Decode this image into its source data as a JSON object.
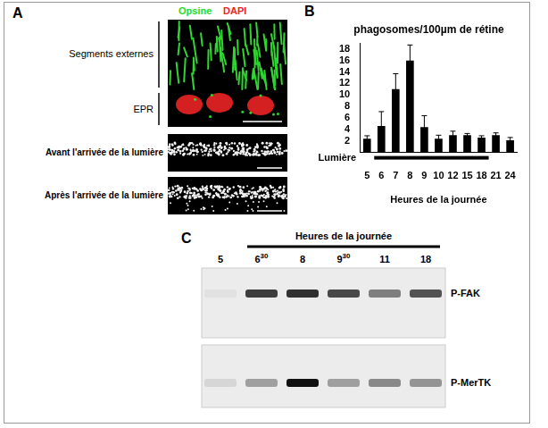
{
  "panel_a": {
    "letter": "A",
    "legend": [
      {
        "text": "Opsine",
        "color": "#22dd22"
      },
      {
        "text": "DAPI",
        "color": "#ee2222"
      }
    ],
    "layers": [
      "Segments externes",
      "EPR"
    ],
    "rows": [
      "Avant l'arrivée de la lumière",
      "Après l'arrivée de la lumière"
    ]
  },
  "chart_data": {
    "letter": "B",
    "type": "bar",
    "title": "phagosomes/100µm de rétine",
    "x_label": "Heures de la journée",
    "categories": [
      "5",
      "6",
      "7",
      "8",
      "9",
      "10",
      "12",
      "15",
      "18",
      "21",
      "24"
    ],
    "values": [
      2.4,
      4.6,
      11,
      16,
      4.4,
      2.4,
      3.0,
      3.0,
      2.6,
      3.0,
      2.1
    ],
    "errors": [
      0.5,
      2.5,
      2.7,
      2.7,
      2.0,
      0.6,
      0.7,
      0.3,
      0.3,
      0.4,
      0.5
    ],
    "color": "#000000",
    "ylim": [
      0,
      19
    ],
    "yticks": [
      2,
      4,
      6,
      8,
      10,
      12,
      14,
      16,
      18
    ],
    "grid": false,
    "annotations": [
      {
        "text": "Lumière",
        "from": "6",
        "to": "18"
      }
    ]
  },
  "panel_c": {
    "letter": "C",
    "title": "Heures de la journée",
    "lanes": [
      {
        "text": "5"
      },
      {
        "text": "6",
        "superscript": "30"
      },
      {
        "text": "8"
      },
      {
        "text": "9",
        "superscript": "30"
      },
      {
        "text": "11"
      },
      {
        "text": "18"
      }
    ],
    "blots": [
      {
        "name": "P-FAK",
        "intensity": [
          0.05,
          0.8,
          0.85,
          0.75,
          0.5,
          0.7
        ]
      },
      {
        "name": "P-MerTK",
        "intensity": [
          0.1,
          0.35,
          1.0,
          0.35,
          0.45,
          0.4
        ]
      }
    ]
  }
}
